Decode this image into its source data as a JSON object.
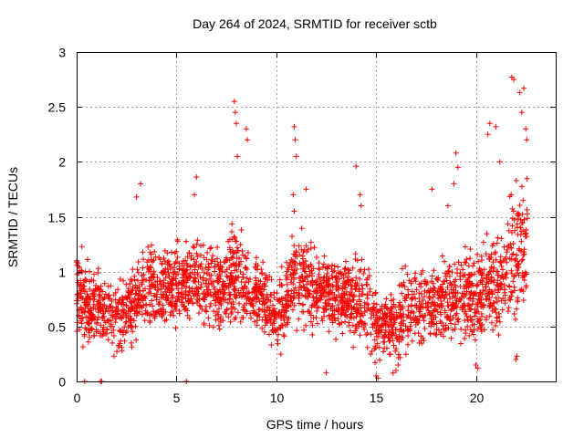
{
  "chart_data": {
    "type": "scatter",
    "title": "Day 264 of 2024, SRMTID for receiver sctb",
    "xlabel": "GPS time / hours",
    "ylabel": "SRMTID / TECUs",
    "xlim": [
      0,
      24
    ],
    "ylim": [
      0,
      3
    ],
    "x_ticks": [
      0,
      5,
      10,
      15,
      20
    ],
    "x_tick_labels": [
      "0",
      "5",
      "10",
      "15",
      "20"
    ],
    "y_ticks": [
      0,
      0.5,
      1,
      1.5,
      2,
      2.5,
      3
    ],
    "y_tick_labels": [
      "0",
      "0.5",
      "1",
      "1.5",
      "2",
      "2.5",
      "3"
    ],
    "grid": true,
    "marker": "+",
    "colors": {
      "series": "#ff0000",
      "axis": "#000000",
      "grid": "#a0a0a0"
    },
    "series": [
      {
        "name": "SRMTID",
        "description": "approx. 2700 plus-marker samples, 0–22.6 h",
        "envelope_hours": [
          0,
          0.5,
          1,
          1.5,
          2,
          2.5,
          3,
          3.5,
          4,
          4.5,
          5,
          5.5,
          6,
          6.5,
          7,
          7.5,
          8,
          8.5,
          9,
          9.5,
          10,
          10.5,
          11,
          11.5,
          12,
          12.5,
          13,
          13.5,
          14,
          14.5,
          15,
          15.5,
          16,
          16.5,
          17,
          17.5,
          18,
          18.5,
          19,
          19.5,
          20,
          20.5,
          21,
          21.5,
          22,
          22.6
        ],
        "center": [
          0.85,
          0.7,
          0.65,
          0.6,
          0.55,
          0.65,
          0.75,
          0.85,
          0.85,
          0.85,
          0.9,
          0.9,
          0.9,
          0.9,
          0.85,
          0.85,
          0.95,
          0.85,
          0.8,
          0.75,
          0.55,
          0.75,
          0.95,
          0.9,
          0.8,
          0.8,
          0.8,
          0.75,
          0.75,
          0.7,
          0.55,
          0.5,
          0.5,
          0.65,
          0.7,
          0.7,
          0.75,
          0.75,
          0.8,
          0.8,
          0.75,
          0.8,
          0.9,
          1.0,
          1.15,
          1.3
        ],
        "spread": [
          0.35,
          0.35,
          0.3,
          0.3,
          0.3,
          0.3,
          0.35,
          0.35,
          0.35,
          0.35,
          0.35,
          0.35,
          0.35,
          0.35,
          0.35,
          0.35,
          0.45,
          0.35,
          0.3,
          0.3,
          0.3,
          0.35,
          0.4,
          0.35,
          0.3,
          0.3,
          0.3,
          0.3,
          0.35,
          0.35,
          0.3,
          0.3,
          0.3,
          0.35,
          0.35,
          0.35,
          0.35,
          0.35,
          0.35,
          0.35,
          0.35,
          0.4,
          0.45,
          0.5,
          0.55,
          0.6
        ],
        "points": [
          [
            7.9,
            2.55
          ],
          [
            7.95,
            2.45
          ],
          [
            8.0,
            2.35
          ],
          [
            8.05,
            2.05
          ],
          [
            8.5,
            2.3
          ],
          [
            8.55,
            2.2
          ],
          [
            10.9,
            2.32
          ],
          [
            10.95,
            2.2
          ],
          [
            11.0,
            2.05
          ],
          [
            10.85,
            1.7
          ],
          [
            10.9,
            1.55
          ],
          [
            14.0,
            1.96
          ],
          [
            14.2,
            1.7
          ],
          [
            14.25,
            1.6
          ],
          [
            18.6,
            1.6
          ],
          [
            19.0,
            2.08
          ],
          [
            19.1,
            1.95
          ],
          [
            18.9,
            1.8
          ],
          [
            20.6,
            2.25
          ],
          [
            20.7,
            2.35
          ],
          [
            21.0,
            2.32
          ],
          [
            21.2,
            2.0
          ],
          [
            21.8,
            2.77
          ],
          [
            21.9,
            2.75
          ],
          [
            22.2,
            2.63
          ],
          [
            22.4,
            2.67
          ],
          [
            22.3,
            2.45
          ],
          [
            22.5,
            2.3
          ],
          [
            22.55,
            2.2
          ],
          [
            3.2,
            1.8
          ],
          [
            3.0,
            1.68
          ],
          [
            6.0,
            1.86
          ],
          [
            5.9,
            1.7
          ],
          [
            11.5,
            1.75
          ],
          [
            17.8,
            1.75
          ],
          [
            0.4,
            0.0
          ],
          [
            1.2,
            0.0
          ],
          [
            1.25,
            0.0
          ],
          [
            5.5,
            0.0
          ],
          [
            12.5,
            0.08
          ],
          [
            15.0,
            0.05
          ],
          [
            15.1,
            0.03
          ],
          [
            16.0,
            0.1
          ],
          [
            16.1,
            0.15
          ],
          [
            20.0,
            0.15
          ],
          [
            20.1,
            0.12
          ],
          [
            22.0,
            0.2
          ],
          [
            22.05,
            0.23
          ]
        ]
      }
    ]
  }
}
